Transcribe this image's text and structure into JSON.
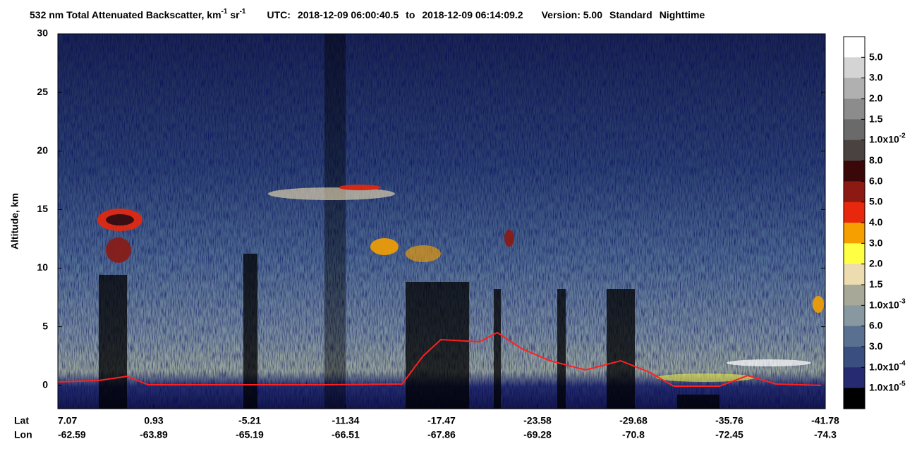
{
  "chart_data": {
    "type": "heatmap",
    "title": {
      "product": "532 nm Total Attenuated Backscatter, km",
      "product_exp1": "-1",
      "product_unit2": " sr",
      "product_exp2": "-1",
      "utc_label": "UTC:",
      "start": "2018-12-09 06:00:40.5",
      "to": "to",
      "end": "2018-12-09 06:14:09.2",
      "version": "Version: 5.00",
      "mode": "Standard",
      "time": "Nighttime"
    },
    "ylabel": "Altitude, km",
    "ylim": [
      -2,
      30
    ],
    "yticks": [
      0,
      5,
      10,
      15,
      20,
      25,
      30
    ],
    "x_rows": [
      "Lat",
      "Lon"
    ],
    "lat": [
      7.07,
      0.93,
      -5.21,
      -11.34,
      -17.47,
      -23.58,
      -29.68,
      -35.76,
      -41.78
    ],
    "lon": [
      -62.59,
      -63.89,
      -65.19,
      -66.51,
      -67.86,
      -69.28,
      -70.8,
      -72.45,
      -74.3
    ],
    "colorbar": {
      "colors": [
        "#ffffff",
        "#d4d4d4",
        "#b0b0b0",
        "#8c8c8c",
        "#6a6a6a",
        "#4a4240",
        "#3a0808",
        "#8c1a12",
        "#e8280c",
        "#f5a000",
        "#ffff44",
        "#ecdcb0",
        "#a8a898",
        "#8898a0",
        "#5a7090",
        "#3a4f80",
        "#262a70",
        "#000000"
      ],
      "labels": [
        {
          "text": "5.0"
        },
        {
          "text": "3.0"
        },
        {
          "text": "2.0"
        },
        {
          "text": "1.5"
        },
        {
          "text": "1.0x10",
          "exp": "-2"
        },
        {
          "text": "8.0"
        },
        {
          "text": "6.0"
        },
        {
          "text": "5.0"
        },
        {
          "text": "4.0"
        },
        {
          "text": "3.0"
        },
        {
          "text": "2.0"
        },
        {
          "text": "1.5"
        },
        {
          "text": "1.0x10",
          "exp": "-3"
        },
        {
          "text": "6.0"
        },
        {
          "text": "3.0"
        },
        {
          "text": "1.0x10",
          "exp": "-4"
        },
        {
          "text": "1.0x10",
          "exp": "-5"
        }
      ]
    }
  }
}
